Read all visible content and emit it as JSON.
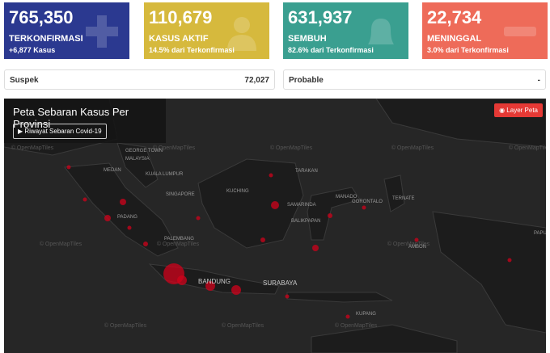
{
  "cards": [
    {
      "value": "765,350",
      "label": "TERKONFIRMASI",
      "sub": "+6,877 Kasus"
    },
    {
      "value": "110,679",
      "label": "KASUS AKTIF",
      "sub": "14.5% dari Terkonfirmasi"
    },
    {
      "value": "631,937",
      "label": "SEMBUH",
      "sub": "82.6% dari Terkonfirmasi"
    },
    {
      "value": "22,734",
      "label": "MENINGGAL",
      "sub": "3.0% dari Terkonfirmasi"
    }
  ],
  "info": [
    {
      "label": "Suspek",
      "value": "72,027"
    },
    {
      "label": "Probable",
      "value": "-"
    }
  ],
  "map": {
    "title": "Peta Sebaran Kasus Per Provinsi",
    "history_button": "▶ Riwayat Sebaran Covid-19",
    "layer_button": "◉ Layer Peta",
    "watermark": "© OpenMapTiles",
    "cities": [
      "GEORGE TOWN",
      "MALAYSIA",
      "MEDAN",
      "KUALA LUMPUR",
      "SINGAPORE",
      "PADANG",
      "PALEMBANG",
      "KUCHING",
      "TARAKAN",
      "SAMARINDA",
      "BALIKPAPAN",
      "MANADO",
      "GORONTALO",
      "TERNATE",
      "AMBON",
      "BANDUNG",
      "SURABAYA",
      "KUPANG",
      "PAPUA"
    ]
  }
}
